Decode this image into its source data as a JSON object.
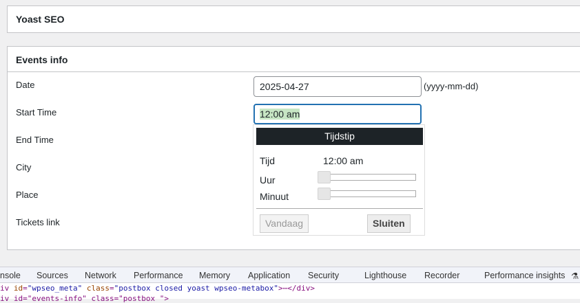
{
  "yoast": {
    "title": "Yoast SEO"
  },
  "events": {
    "title": "Events info",
    "labels": [
      "Date",
      "Start Time",
      "End Time",
      "City",
      "Place",
      "Tickets link"
    ],
    "date_value": "2025-04-27",
    "date_hint": "(yyyy-mm-dd)",
    "start_value": "12:00 am"
  },
  "picker": {
    "title": "Tijdstip",
    "time_label": "Tijd",
    "time_value": "12:00 am",
    "hour_label": "Uur",
    "minute_label": "Minuut",
    "hour_value": 0,
    "minute_value": 0,
    "today_button": "Vandaag",
    "close_button": "Sluiten"
  },
  "devtools": {
    "tabs": [
      "nsole",
      "Sources",
      "Network",
      "Performance",
      "Memory",
      "Application",
      "Security",
      "Lighthouse",
      "Recorder",
      "Performance insights"
    ],
    "line1": {
      "prefix": "iv ",
      "a1": "id",
      "v1": "\"wpseo_meta\"",
      "a2": "class",
      "v2": "\"postbox closed yoast wpseo-metabox\"",
      "suffix": ">⋯</div>"
    },
    "line2": "iv id=\"events-info\" class=\"postbox \">"
  }
}
